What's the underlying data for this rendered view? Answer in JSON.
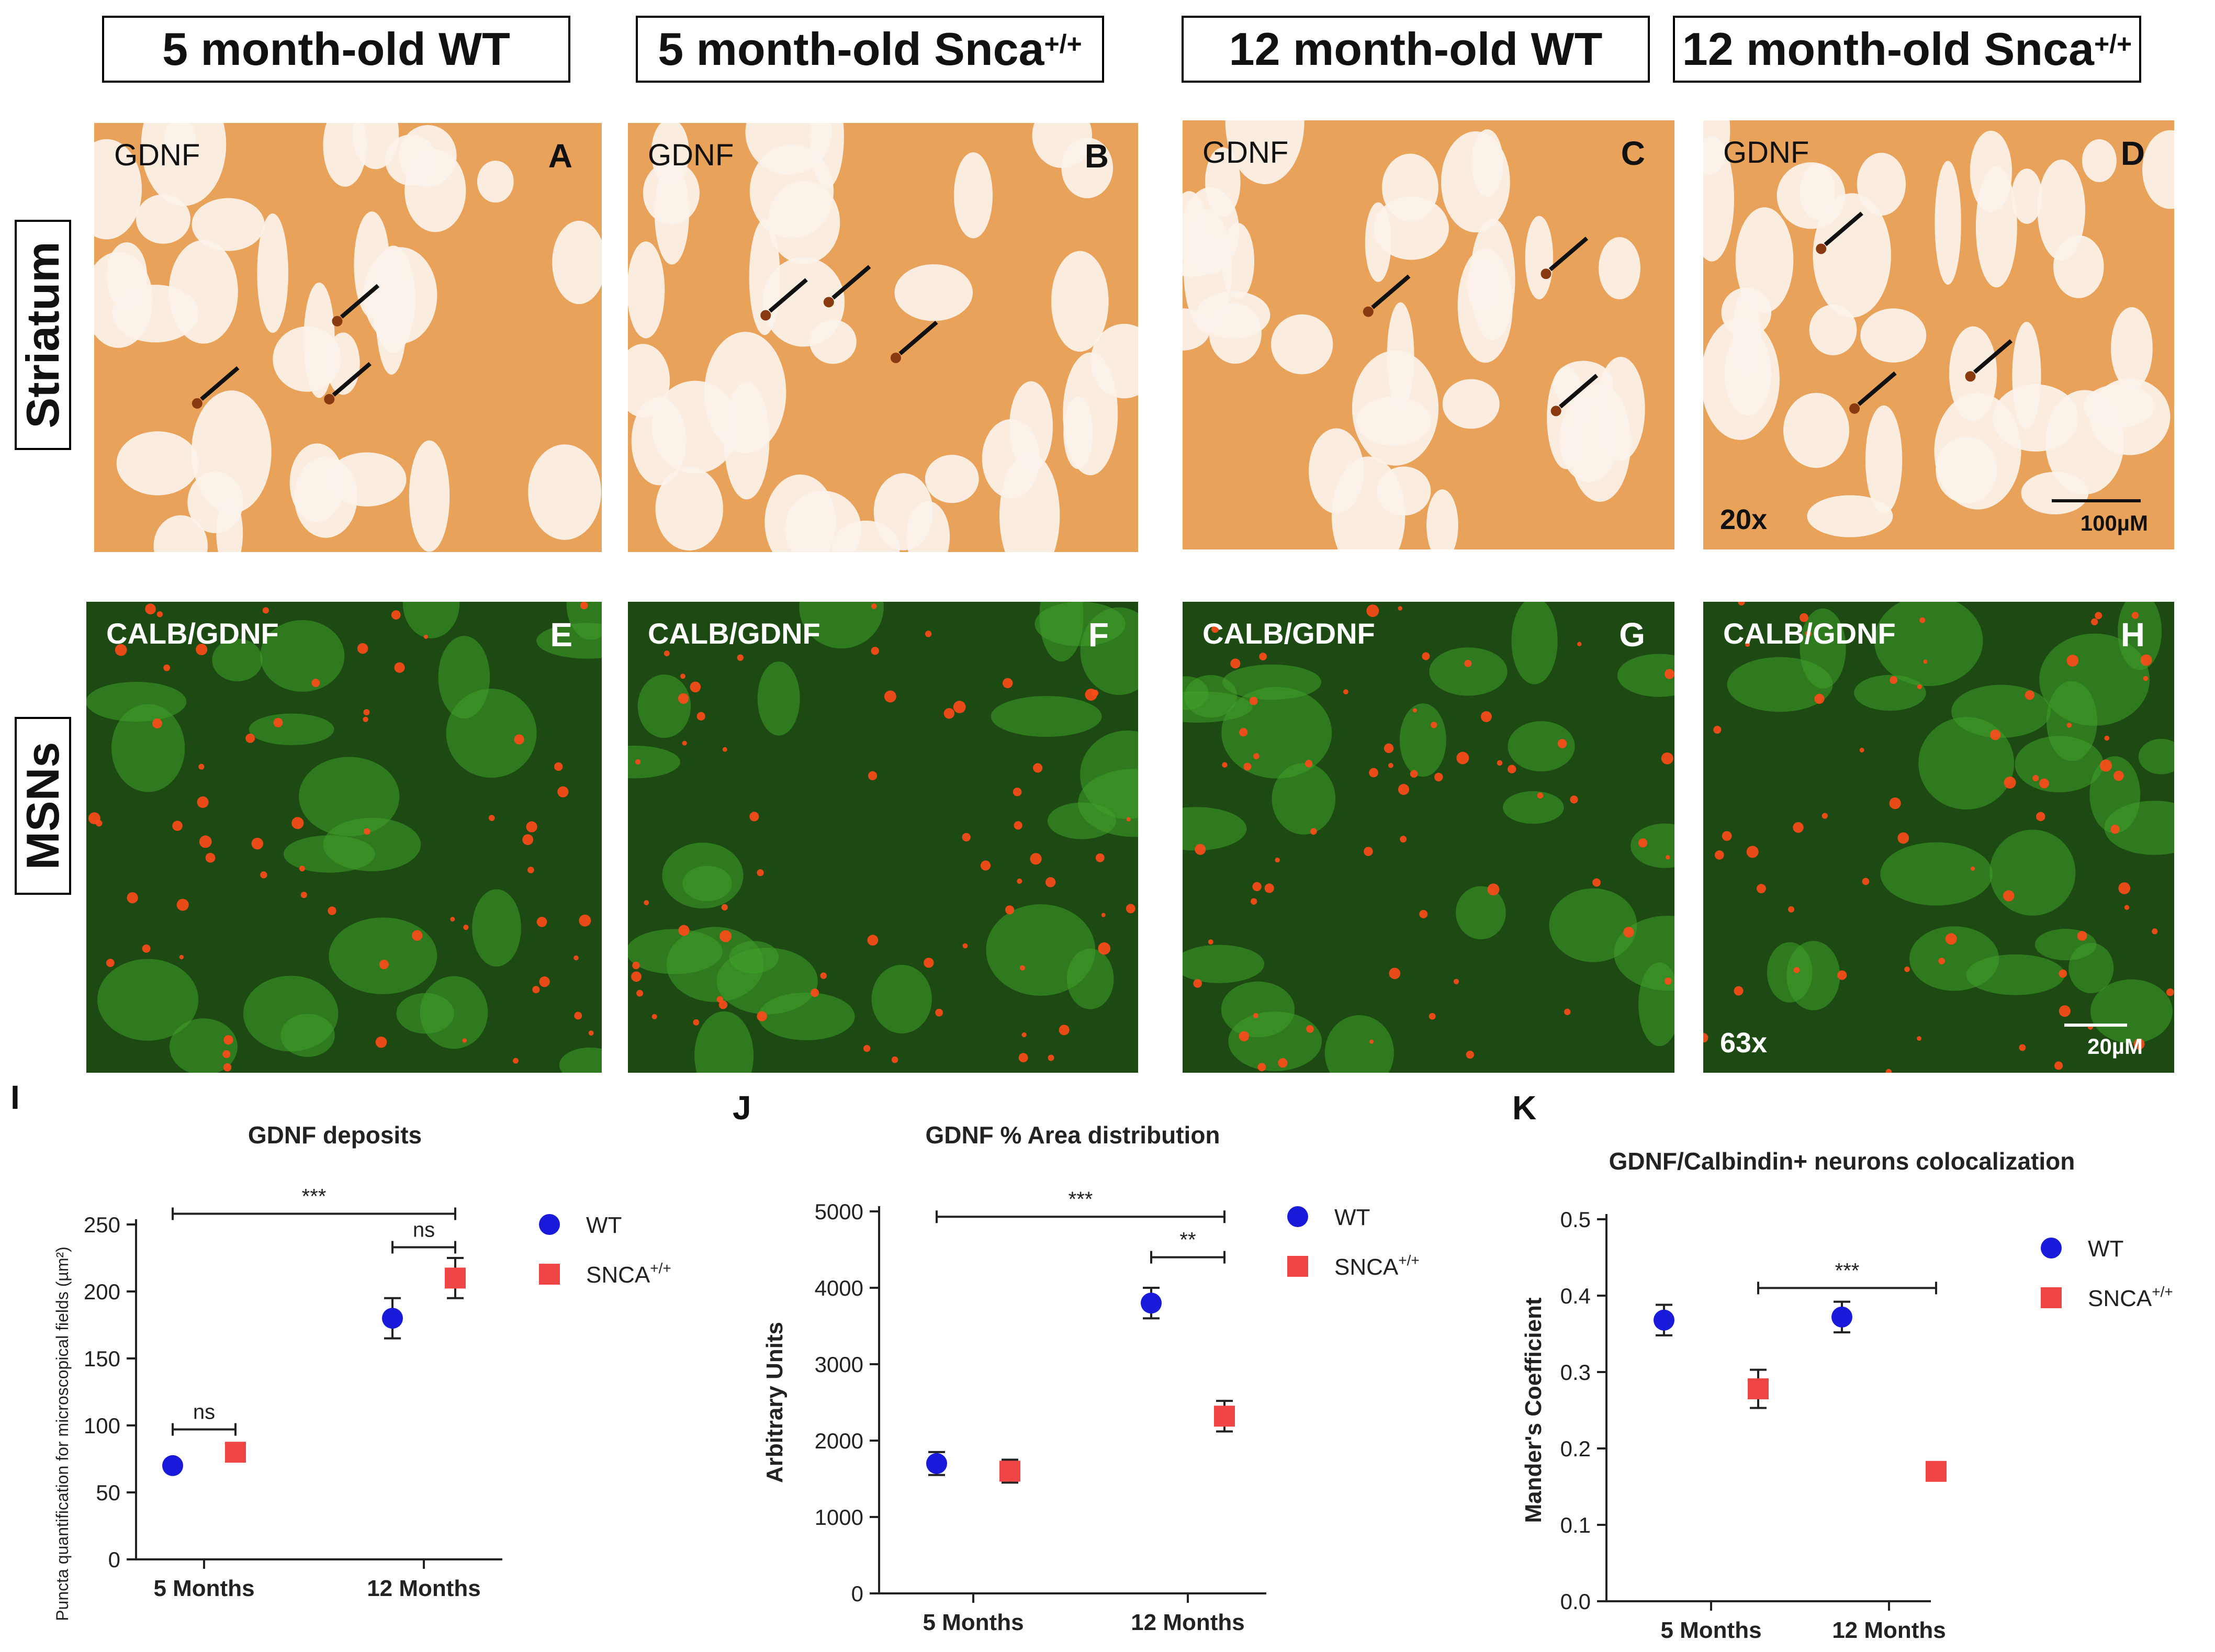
{
  "columns": [
    {
      "text": "5 month-old WT",
      "sup": ""
    },
    {
      "text": "5 month-old Snca",
      "sup": "+/+"
    },
    {
      "text": "12 month-old WT",
      "sup": ""
    },
    {
      "text": "12 month-old Snca",
      "sup": "+/+"
    }
  ],
  "rows": {
    "striatum": "Striatum",
    "msns": "MSNs"
  },
  "ihc_panels": [
    {
      "letter": "A",
      "stain": "GDNF"
    },
    {
      "letter": "B",
      "stain": "GDNF"
    },
    {
      "letter": "C",
      "stain": "GDNF"
    },
    {
      "letter": "D",
      "stain": "GDNF",
      "magnification": "20x",
      "scale": "100µM"
    }
  ],
  "fluo_panels": [
    {
      "letter": "E",
      "stain": "CALB/GDNF"
    },
    {
      "letter": "F",
      "stain": "CALB/GDNF"
    },
    {
      "letter": "G",
      "stain": "CALB/GDNF"
    },
    {
      "letter": "H",
      "stain": "CALB/GDNF",
      "magnification": "63x",
      "scale": "20µM"
    }
  ],
  "colors": {
    "wt": "#1a1adb",
    "snca": "#f04545",
    "ihc_bg": "#e8a25a",
    "fluo_bg": "#1c4a12"
  },
  "chart_letters": {
    "I": "I",
    "J": "J",
    "K": "K"
  },
  "chart_data": [
    {
      "type": "scatter",
      "title": "GDNF deposits",
      "xlabel": "",
      "ylabel": "Puncta quantification for microscopical fields (µm²)",
      "categories": [
        "5 Months",
        "12 Months"
      ],
      "ylim": [
        0,
        250
      ],
      "yticks": [
        0,
        50,
        100,
        150,
        200,
        250
      ],
      "series": [
        {
          "name": "WT",
          "values": [
            70,
            180
          ],
          "errors": [
            0,
            15
          ]
        },
        {
          "name": "SNCA",
          "name_sup": "+/+",
          "values": [
            80,
            210
          ],
          "errors": [
            0,
            15
          ]
        }
      ],
      "annotations": [
        {
          "text": "ns",
          "from": [
            0,
            0
          ],
          "to": [
            0,
            1
          ],
          "y": 97
        },
        {
          "text": "***",
          "from": [
            0,
            0
          ],
          "to": [
            1,
            1
          ],
          "y": 258
        },
        {
          "text": "ns",
          "from": [
            1,
            0
          ],
          "to": [
            1,
            1
          ],
          "y": 233
        }
      ]
    },
    {
      "type": "scatter",
      "title": "GDNF % Area distribution",
      "xlabel": "",
      "ylabel": "Arbitrary Units",
      "categories": [
        "5 Months",
        "12 Months"
      ],
      "ylim": [
        0,
        5000
      ],
      "yticks": [
        0,
        1000,
        2000,
        3000,
        4000,
        5000
      ],
      "series": [
        {
          "name": "WT",
          "values": [
            1700,
            3800
          ],
          "errors": [
            150,
            200
          ]
        },
        {
          "name": "SNCA",
          "name_sup": "+/+",
          "values": [
            1600,
            2320
          ],
          "errors": [
            150,
            200
          ]
        }
      ],
      "annotations": [
        {
          "text": "***",
          "from": [
            0,
            0
          ],
          "to": [
            1,
            1
          ],
          "y": 4930
        },
        {
          "text": "**",
          "from": [
            1,
            0
          ],
          "to": [
            1,
            1
          ],
          "y": 4400
        }
      ]
    },
    {
      "type": "scatter",
      "title": "GDNF/Calbindin+ neurons colocalization",
      "xlabel": "",
      "ylabel": "Mander's Coefficient",
      "categories": [
        "5 Months",
        "12 Months"
      ],
      "ylim": [
        0,
        0.5
      ],
      "yticks": [
        0.0,
        0.1,
        0.2,
        0.3,
        0.4,
        0.5
      ],
      "ytick_labels": [
        "0.0",
        "0.1",
        "0.2",
        "0.3",
        "0.4",
        "0.5"
      ],
      "series": [
        {
          "name": "WT",
          "values": [
            0.368,
            0.372
          ],
          "errors": [
            0.02,
            0.02
          ]
        },
        {
          "name": "SNCA",
          "name_sup": "+/+",
          "values": [
            0.278,
            0.17
          ],
          "errors": [
            0.025,
            0.012
          ]
        }
      ],
      "annotations": [
        {
          "text": "***",
          "from": [
            0,
            1
          ],
          "to": [
            1,
            1
          ],
          "y": 0.41
        }
      ]
    }
  ]
}
